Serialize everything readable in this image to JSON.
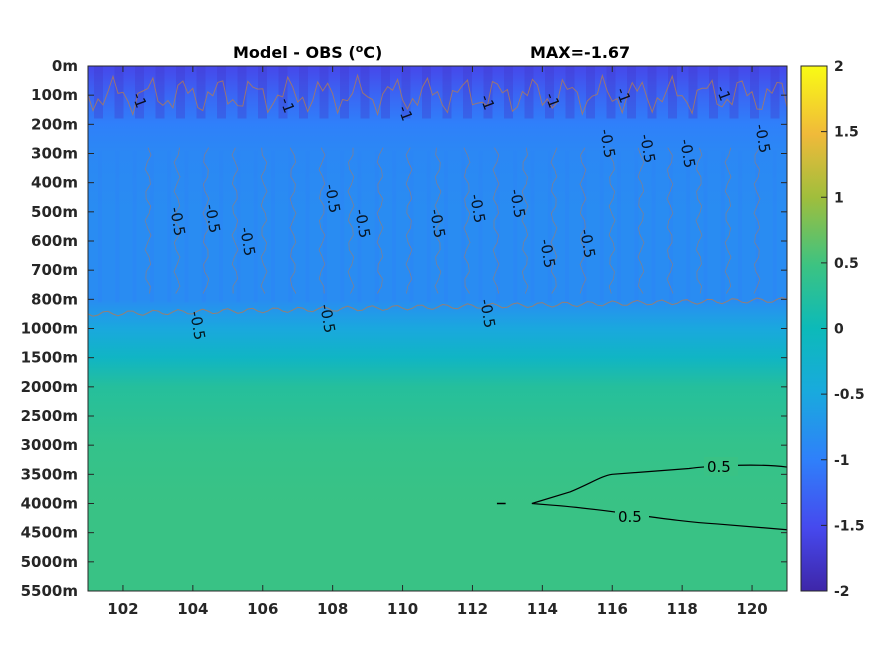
{
  "chart_data": {
    "type": "heatmap",
    "title_left": "Model - OBS (",
    "title_unit_sup": "o",
    "title_unit": "C)",
    "title_right": "MAX=-1.67",
    "x_ticks": [
      "102",
      "104",
      "106",
      "108",
      "110",
      "112",
      "114",
      "116",
      "118",
      "120"
    ],
    "x_tick_values": [
      102,
      104,
      106,
      108,
      110,
      112,
      114,
      116,
      118,
      120
    ],
    "xlim": [
      101,
      121
    ],
    "y_ticks": [
      "0m",
      "100m",
      "200m",
      "300m",
      "400m",
      "500m",
      "600m",
      "700m",
      "800m",
      "1000m",
      "1500m",
      "2000m",
      "2500m",
      "3000m",
      "3500m",
      "4000m",
      "4500m",
      "5000m",
      "5500m"
    ],
    "colorbar": {
      "ticks": [
        "2",
        "1.5",
        "1",
        "0.5",
        "0",
        "-0.5",
        "-1",
        "-1.5",
        "-2"
      ],
      "tick_values": [
        2,
        1.5,
        1,
        0.5,
        0,
        -0.5,
        -1,
        -1.5,
        -2
      ],
      "range": [
        -2,
        2
      ],
      "colormap": "parula"
    },
    "depth_profile": [
      {
        "level": 0,
        "value": -1.55
      },
      {
        "level": 1,
        "value": -1.25
      },
      {
        "level": 2,
        "value": -1.0
      },
      {
        "level": 3,
        "value": -0.9
      },
      {
        "level": 5,
        "value": -0.85
      },
      {
        "level": 8,
        "value": -0.85
      },
      {
        "level": 9,
        "value": -0.5
      },
      {
        "level": 10,
        "value": -0.15
      },
      {
        "level": 11,
        "value": 0.25
      },
      {
        "level": 13,
        "value": 0.4
      },
      {
        "level": 15,
        "value": 0.45
      },
      {
        "level": 18,
        "value": 0.45
      }
    ],
    "contour_label_black": "0.5",
    "contour_label_upper": "-1",
    "contour_label_mid": "-0.5"
  }
}
